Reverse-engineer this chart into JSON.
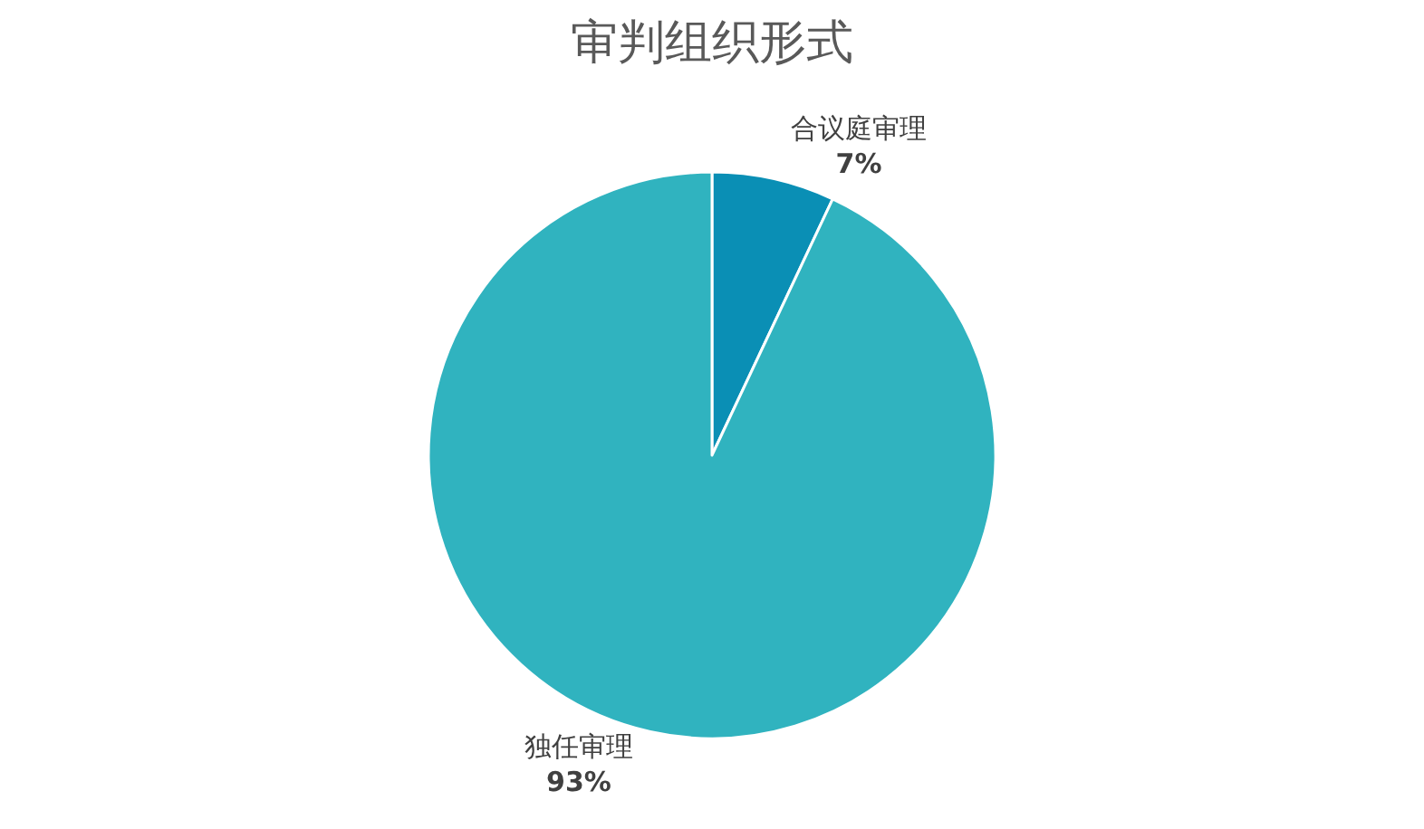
{
  "chart_data": {
    "type": "pie",
    "title": "审判组织形式",
    "categories": [
      "合议庭审理",
      "独任审理"
    ],
    "values": [
      7,
      93
    ],
    "value_labels": [
      "7%",
      "93%"
    ],
    "colors": [
      "#0a8fb5",
      "#30b3bf"
    ],
    "legend": false
  }
}
